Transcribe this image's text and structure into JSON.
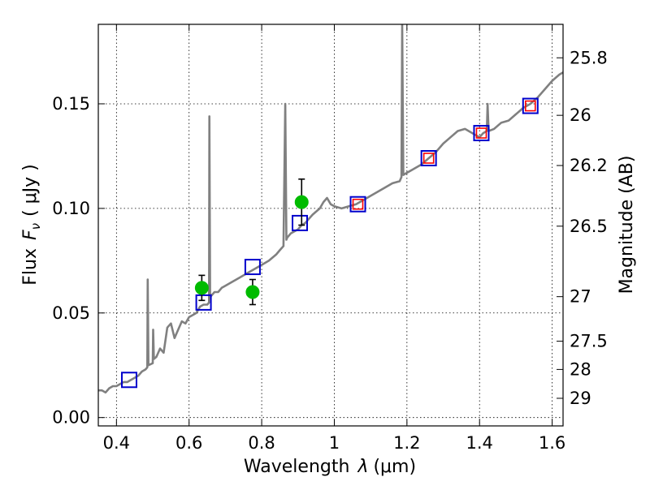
{
  "chart_data": {
    "type": "scatter",
    "xlabel_prefix": "Wavelength",
    "xlabel_symbol": "λ",
    "xlabel_unit": "(μm)",
    "ylabel_prefix": "Flux",
    "ylabel_symbol": "F",
    "ylabel_sub": "ν",
    "ylabel_unit": "( μJy )",
    "y2label": "Magnitude (AB)",
    "xlim": [
      0.35,
      1.63
    ],
    "ylim": [
      -0.004,
      0.188
    ],
    "x_ticks": [
      0.4,
      0.6,
      0.8,
      1.0,
      1.2,
      1.4,
      1.6
    ],
    "x_tick_labels": [
      "0.4",
      "0.6",
      "0.8",
      "1",
      "1.2",
      "1.4",
      "1.6"
    ],
    "y_ticks": [
      0.0,
      0.05,
      0.1,
      0.15
    ],
    "y_tick_labels": [
      "0.00",
      "0.05",
      "0.10",
      "0.15"
    ],
    "y2_ticks": [
      {
        "flux": 0.172,
        "label": "25.8"
      },
      {
        "flux": 0.1445,
        "label": "26"
      },
      {
        "flux": 0.1205,
        "label": "26.2"
      },
      {
        "flux": 0.0915,
        "label": "26.5"
      },
      {
        "flux": 0.0578,
        "label": "27"
      },
      {
        "flux": 0.0365,
        "label": "27.5"
      },
      {
        "flux": 0.023,
        "label": "28"
      },
      {
        "flux": 0.0092,
        "label": "29"
      }
    ],
    "grid": true,
    "colors": {
      "model": "#808080",
      "observed": "#00bb00",
      "model_photometry": "#0000cc",
      "inner_square": "#ff0000",
      "error_bar": "#000000"
    },
    "series": [
      {
        "kind": "model_spectrum",
        "points": [
          [
            0.35,
            0.013
          ],
          [
            0.36,
            0.013
          ],
          [
            0.37,
            0.012
          ],
          [
            0.38,
            0.014
          ],
          [
            0.39,
            0.015
          ],
          [
            0.4,
            0.015
          ],
          [
            0.41,
            0.016
          ],
          [
            0.42,
            0.017
          ],
          [
            0.43,
            0.017
          ],
          [
            0.44,
            0.018
          ],
          [
            0.45,
            0.019
          ],
          [
            0.46,
            0.02
          ],
          [
            0.47,
            0.022
          ],
          [
            0.48,
            0.023
          ],
          [
            0.485,
            0.024
          ],
          [
            0.486,
            0.066
          ],
          [
            0.488,
            0.025
          ],
          [
            0.5,
            0.026
          ],
          [
            0.501,
            0.042
          ],
          [
            0.503,
            0.028
          ],
          [
            0.51,
            0.029
          ],
          [
            0.52,
            0.033
          ],
          [
            0.53,
            0.031
          ],
          [
            0.54,
            0.043
          ],
          [
            0.55,
            0.045
          ],
          [
            0.56,
            0.038
          ],
          [
            0.57,
            0.042
          ],
          [
            0.58,
            0.046
          ],
          [
            0.59,
            0.045
          ],
          [
            0.6,
            0.048
          ],
          [
            0.61,
            0.049
          ],
          [
            0.62,
            0.05
          ],
          [
            0.63,
            0.053
          ],
          [
            0.64,
            0.054
          ],
          [
            0.65,
            0.054
          ],
          [
            0.655,
            0.055
          ],
          [
            0.656,
            0.144
          ],
          [
            0.658,
            0.057
          ],
          [
            0.66,
            0.058
          ],
          [
            0.67,
            0.06
          ],
          [
            0.68,
            0.06
          ],
          [
            0.69,
            0.062
          ],
          [
            0.7,
            0.063
          ],
          [
            0.72,
            0.065
          ],
          [
            0.74,
            0.067
          ],
          [
            0.76,
            0.069
          ],
          [
            0.78,
            0.071
          ],
          [
            0.8,
            0.073
          ],
          [
            0.82,
            0.075
          ],
          [
            0.84,
            0.078
          ],
          [
            0.85,
            0.08
          ],
          [
            0.86,
            0.082
          ],
          [
            0.865,
            0.15
          ],
          [
            0.868,
            0.085
          ],
          [
            0.87,
            0.086
          ],
          [
            0.88,
            0.088
          ],
          [
            0.89,
            0.089
          ],
          [
            0.9,
            0.09
          ],
          [
            0.91,
            0.092
          ],
          [
            0.92,
            0.093
          ],
          [
            0.94,
            0.097
          ],
          [
            0.96,
            0.1
          ],
          [
            0.97,
            0.103
          ],
          [
            0.98,
            0.105
          ],
          [
            0.99,
            0.102
          ],
          [
            1.0,
            0.101
          ],
          [
            1.02,
            0.1
          ],
          [
            1.04,
            0.101
          ],
          [
            1.06,
            0.102
          ],
          [
            1.08,
            0.104
          ],
          [
            1.1,
            0.106
          ],
          [
            1.12,
            0.108
          ],
          [
            1.14,
            0.11
          ],
          [
            1.16,
            0.112
          ],
          [
            1.18,
            0.113
          ],
          [
            1.185,
            0.115
          ],
          [
            1.187,
            0.188
          ],
          [
            1.19,
            0.116
          ],
          [
            1.2,
            0.117
          ],
          [
            1.22,
            0.119
          ],
          [
            1.24,
            0.121
          ],
          [
            1.26,
            0.124
          ],
          [
            1.28,
            0.127
          ],
          [
            1.3,
            0.131
          ],
          [
            1.32,
            0.134
          ],
          [
            1.34,
            0.137
          ],
          [
            1.36,
            0.138
          ],
          [
            1.38,
            0.136
          ],
          [
            1.4,
            0.134
          ],
          [
            1.41,
            0.136
          ],
          [
            1.42,
            0.137
          ],
          [
            1.422,
            0.15
          ],
          [
            1.425,
            0.137
          ],
          [
            1.44,
            0.138
          ],
          [
            1.46,
            0.141
          ],
          [
            1.48,
            0.142
          ],
          [
            1.5,
            0.145
          ],
          [
            1.52,
            0.148
          ],
          [
            1.54,
            0.15
          ],
          [
            1.56,
            0.153
          ],
          [
            1.58,
            0.157
          ],
          [
            1.6,
            0.161
          ],
          [
            1.62,
            0.164
          ],
          [
            1.63,
            0.165
          ]
        ]
      },
      {
        "kind": "model_photometry",
        "points": [
          [
            0.435,
            0.018
          ],
          [
            0.64,
            0.055
          ],
          [
            0.775,
            0.072
          ],
          [
            0.905,
            0.093
          ],
          [
            1.065,
            0.102
          ],
          [
            1.26,
            0.124
          ],
          [
            1.405,
            0.136
          ],
          [
            1.54,
            0.149
          ]
        ]
      },
      {
        "kind": "inner_markers",
        "points": [
          [
            1.065,
            0.102
          ],
          [
            1.26,
            0.124
          ],
          [
            1.405,
            0.136
          ],
          [
            1.54,
            0.149
          ]
        ]
      },
      {
        "kind": "observed",
        "points": [
          {
            "x": 0.635,
            "y": 0.062,
            "err": 0.006
          },
          {
            "x": 0.775,
            "y": 0.06,
            "err": 0.006
          },
          {
            "x": 0.91,
            "y": 0.103,
            "err": 0.011
          }
        ]
      }
    ]
  }
}
